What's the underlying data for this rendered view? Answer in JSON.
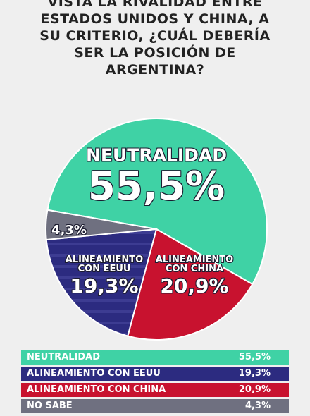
{
  "chart_data": {
    "type": "pie",
    "title": "VISTA LA RIVALIDAD ENTRE ESTADOS UNIDOS Y CHINA, A SU CRITERIO, ¿CUÁL DEBERÍA SER LA POSICIÓN DE ARGENTINA?",
    "categories": [
      "NEUTRALIDAD",
      "ALINEAMIENTO CON EEUU",
      "ALINEAMIENTO CON CHINA",
      "NO SABE"
    ],
    "values": [
      55.5,
      19.3,
      20.9,
      4.3
    ],
    "value_labels": [
      "55,5%",
      "19,3%",
      "20,9%",
      "4,3%"
    ],
    "colors": [
      "#3fd2a5",
      "#2c2b80",
      "#c8122f",
      "#6f7080"
    ]
  }
}
